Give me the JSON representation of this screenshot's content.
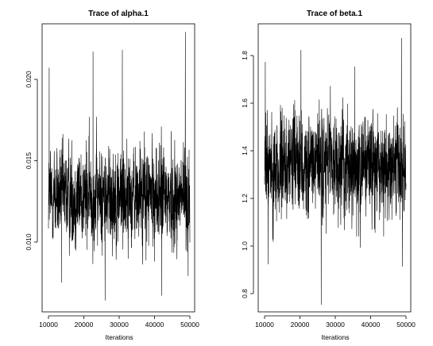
{
  "chart_data": [
    {
      "type": "line",
      "title": "Trace of alpha.1",
      "xlabel": "Iterations",
      "ylabel": "",
      "x_range": [
        10000,
        50000
      ],
      "xlim": [
        10000,
        50000
      ],
      "ylim": [
        0.0068,
        0.0245
      ],
      "x_ticks": [
        10000,
        20000,
        30000,
        40000,
        50000
      ],
      "x_tick_labels": [
        "10000",
        "20000",
        "30000",
        "40000",
        "50000"
      ],
      "y_ticks": [
        0.01,
        0.015,
        0.02
      ],
      "y_tick_labels": [
        "0.010",
        "0.015",
        "0.020"
      ],
      "grid": false,
      "center": 0.0139,
      "spread": 0.0021,
      "series": [
        {
          "color": "#000000",
          "samples": 40000,
          "values_summary": "MCMC trace fluctuating around ~0.014 with range ~0.0075 to ~0.024",
          "key_points": [
            {
              "x": 10200,
              "y": 0.0218
            },
            {
              "x": 13700,
              "y": 0.0086
            },
            {
              "x": 22600,
              "y": 0.0228
            },
            {
              "x": 26000,
              "y": 0.0075
            },
            {
              "x": 30900,
              "y": 0.0229
            },
            {
              "x": 42000,
              "y": 0.0078
            },
            {
              "x": 48700,
              "y": 0.024
            },
            {
              "x": 49500,
              "y": 0.009
            }
          ]
        }
      ]
    },
    {
      "type": "line",
      "title": "Trace of beta.1",
      "xlabel": "Iterations",
      "ylabel": "",
      "x_range": [
        10000,
        50000
      ],
      "xlim": [
        10000,
        50000
      ],
      "ylim": [
        0.73,
        1.94
      ],
      "x_ticks": [
        10000,
        20000,
        30000,
        40000,
        50000
      ],
      "x_tick_labels": [
        "10000",
        "20000",
        "30000",
        "40000",
        "50000"
      ],
      "y_ticks": [
        0.8,
        1.0,
        1.2,
        1.4,
        1.6,
        1.8
      ],
      "y_tick_labels": [
        "0.8",
        "1.0",
        "1.2",
        "1.4",
        "1.6",
        "1.8"
      ],
      "grid": false,
      "center": 1.34,
      "spread": 0.15,
      "series": [
        {
          "color": "#000000",
          "samples": 40000,
          "values_summary": "MCMC trace fluctuating around ~1.34 with range ~0.76 to ~1.88",
          "key_points": [
            {
              "x": 10200,
              "y": 1.78
            },
            {
              "x": 11000,
              "y": 0.93
            },
            {
              "x": 20300,
              "y": 1.83
            },
            {
              "x": 26000,
              "y": 0.76
            },
            {
              "x": 35500,
              "y": 1.76
            },
            {
              "x": 48700,
              "y": 1.88
            },
            {
              "x": 49000,
              "y": 0.92
            }
          ]
        }
      ]
    }
  ]
}
